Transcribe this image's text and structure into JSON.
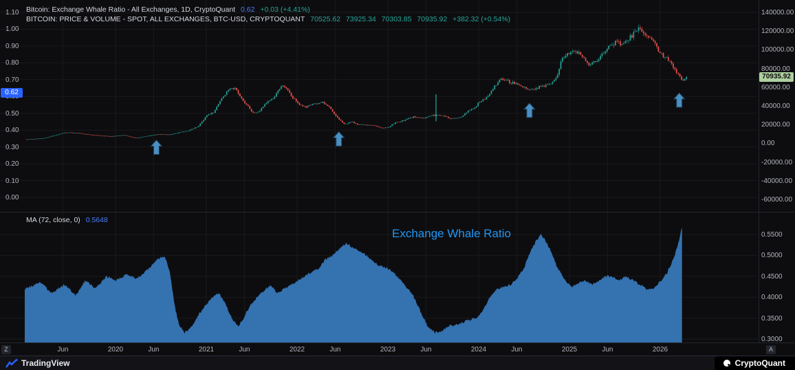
{
  "colors": {
    "background": "#0d0d0f",
    "grid": "rgba(255,255,255,0.055)",
    "axis_text": "#b2b5be",
    "accent_blue": "#2962ff",
    "green": "#26a69a",
    "candle_up": "#26a69a",
    "candle_down": "#ef5350",
    "area_fill": "#3572b0",
    "arrow": "#4a8fc2",
    "center_label_blue": "#2196f3",
    "left_chip_bg": "#2962ff",
    "right_chip_bg": "#aecfa0"
  },
  "header": {
    "line1": {
      "title": "Bitcoin: Exchange Whale Ratio - All Exchanges, 1D, CryptoQuant",
      "value": "0.62",
      "change": "+0.03 (+4.41%)"
    },
    "line2": {
      "title": "BITCOIN: PRICE & VOLUME - SPOT, ALL EXCHANGES, BTC-USD, CRYPTOQUANT",
      "open": "70525.62",
      "high": "73925.34",
      "low": "70303.85",
      "close": "70935.92",
      "change": "+382.32 (+0.54%)"
    }
  },
  "lower": {
    "ma_label": "MA (72, close, 0)",
    "ma_value": "0.5648",
    "center_label": "Exchange Whale Ratio"
  },
  "axes": {
    "left_ticks": [
      "1.10",
      "1.00",
      "0.90",
      "0.80",
      "0.70",
      "0.60",
      "0.50",
      "0.40",
      "0.30",
      "0.20",
      "0.10",
      "0.00"
    ],
    "right_ticks": [
      "140000.00",
      "120000.00",
      "100000.00",
      "80000.00",
      "60000.00",
      "40000.00",
      "20000.00",
      "0.00",
      "-20000.00",
      "-40000.00",
      "-60000.00"
    ],
    "lower_ticks": [
      "0.5500",
      "0.5000",
      "0.4500",
      "0.4000",
      "0.3500",
      "0.3000"
    ],
    "x_ticks": [
      {
        "label": "Jun",
        "year": 2019.42
      },
      {
        "label": "2020",
        "year": 2020
      },
      {
        "label": "Jun",
        "year": 2020.42
      },
      {
        "label": "2021",
        "year": 2021
      },
      {
        "label": "Jun",
        "year": 2021.42
      },
      {
        "label": "2022",
        "year": 2022
      },
      {
        "label": "Jun",
        "year": 2022.42
      },
      {
        "label": "2023",
        "year": 2023
      },
      {
        "label": "Jun",
        "year": 2023.42
      },
      {
        "label": "2024",
        "year": 2024
      },
      {
        "label": "Jun",
        "year": 2024.42
      },
      {
        "label": "2025",
        "year": 2025
      },
      {
        "label": "Jun",
        "year": 2025.42
      },
      {
        "label": "2026",
        "year": 2026
      }
    ],
    "left_chip": "0.62",
    "right_chip": "70935.92"
  },
  "toolbar": {
    "timezone_button": "Z",
    "auto_button": "A"
  },
  "footer": {
    "tradingview": "TradingView",
    "cryptoquant": "CryptoQuant"
  },
  "chart_data": {
    "type": "mixed",
    "charts": [
      {
        "type": "candlestick",
        "name": "BTC-USD spot price, all exchanges, 1D",
        "x_domain_years": [
          2019.0,
          2027.0
        ],
        "data_end_year": 2026.29,
        "right_axis": {
          "min": -60000,
          "max": 140000,
          "tick_step": 20000
        },
        "left_axis": {
          "min": 0.0,
          "max": 1.1,
          "tick_step": 0.1,
          "last_value": 0.62
        },
        "last_price": 70935.92,
        "price_anchors": [
          [
            2019.0,
            3800
          ],
          [
            2019.2,
            5200
          ],
          [
            2019.45,
            11500
          ],
          [
            2019.55,
            11000
          ],
          [
            2019.63,
            10200
          ],
          [
            2019.8,
            8300
          ],
          [
            2019.95,
            7300
          ],
          [
            2020.1,
            8800
          ],
          [
            2020.22,
            5400
          ],
          [
            2020.3,
            6800
          ],
          [
            2020.45,
            9400
          ],
          [
            2020.6,
            9300
          ],
          [
            2020.7,
            11500
          ],
          [
            2020.8,
            13000
          ],
          [
            2020.92,
            19000
          ],
          [
            2021.0,
            29500
          ],
          [
            2021.08,
            33000
          ],
          [
            2021.16,
            47000
          ],
          [
            2021.25,
            57000
          ],
          [
            2021.32,
            59000
          ],
          [
            2021.4,
            47000
          ],
          [
            2021.5,
            34000
          ],
          [
            2021.56,
            32000
          ],
          [
            2021.65,
            42000
          ],
          [
            2021.73,
            48000
          ],
          [
            2021.85,
            63000
          ],
          [
            2021.95,
            49000
          ],
          [
            2022.03,
            41000
          ],
          [
            2022.1,
            39000
          ],
          [
            2022.2,
            42000
          ],
          [
            2022.28,
            44000
          ],
          [
            2022.35,
            39000
          ],
          [
            2022.45,
            27000
          ],
          [
            2022.52,
            20500
          ],
          [
            2022.6,
            23000
          ],
          [
            2022.68,
            20000
          ],
          [
            2022.78,
            19500
          ],
          [
            2022.85,
            19200
          ],
          [
            2022.93,
            16200
          ],
          [
            2023.0,
            16800
          ],
          [
            2023.08,
            22000
          ],
          [
            2023.16,
            24000
          ],
          [
            2023.28,
            28500
          ],
          [
            2023.4,
            27000
          ],
          [
            2023.5,
            30000
          ],
          [
            2023.62,
            29500
          ],
          [
            2023.7,
            26000
          ],
          [
            2023.8,
            27500
          ],
          [
            2023.88,
            34500
          ],
          [
            2023.95,
            38000
          ],
          [
            2024.0,
            43000
          ],
          [
            2024.08,
            48000
          ],
          [
            2024.18,
            62000
          ],
          [
            2024.25,
            69000
          ],
          [
            2024.33,
            66000
          ],
          [
            2024.42,
            64000
          ],
          [
            2024.5,
            61000
          ],
          [
            2024.58,
            57000
          ],
          [
            2024.66,
            60000
          ],
          [
            2024.75,
            62000
          ],
          [
            2024.85,
            69000
          ],
          [
            2024.92,
            91000
          ],
          [
            2024.98,
            96000
          ],
          [
            2025.05,
            99000
          ],
          [
            2025.12,
            95000
          ],
          [
            2025.22,
            84000
          ],
          [
            2025.3,
            88000
          ],
          [
            2025.38,
            97000
          ],
          [
            2025.45,
            104000
          ],
          [
            2025.52,
            109000
          ],
          [
            2025.58,
            106000
          ],
          [
            2025.65,
            112000
          ],
          [
            2025.72,
            118000
          ],
          [
            2025.78,
            122500
          ],
          [
            2025.83,
            117000
          ],
          [
            2025.88,
            112000
          ],
          [
            2025.93,
            107000
          ],
          [
            2026.0,
            96000
          ],
          [
            2026.07,
            91000
          ],
          [
            2026.14,
            83000
          ],
          [
            2026.2,
            73000
          ],
          [
            2026.25,
            67000
          ],
          [
            2026.29,
            70936
          ]
        ]
      },
      {
        "type": "area",
        "name": "Exchange Whale Ratio MA(72)",
        "right_axis": {
          "min": 0.3,
          "max": 0.555,
          "tick_step": 0.05
        },
        "last_value": 0.5648,
        "anchors": [
          [
            2019.0,
            0.42
          ],
          [
            2019.18,
            0.435
          ],
          [
            2019.29,
            0.41
          ],
          [
            2019.44,
            0.43
          ],
          [
            2019.56,
            0.405
          ],
          [
            2019.67,
            0.44
          ],
          [
            2019.78,
            0.42
          ],
          [
            2019.9,
            0.45
          ],
          [
            2020.01,
            0.44
          ],
          [
            2020.12,
            0.455
          ],
          [
            2020.24,
            0.445
          ],
          [
            2020.35,
            0.465
          ],
          [
            2020.46,
            0.49
          ],
          [
            2020.54,
            0.5
          ],
          [
            2020.6,
            0.46
          ],
          [
            2020.65,
            0.38
          ],
          [
            2020.7,
            0.335
          ],
          [
            2020.76,
            0.315
          ],
          [
            2020.84,
            0.33
          ],
          [
            2020.92,
            0.36
          ],
          [
            2020.99,
            0.38
          ],
          [
            2021.07,
            0.4
          ],
          [
            2021.14,
            0.41
          ],
          [
            2021.22,
            0.38
          ],
          [
            2021.29,
            0.345
          ],
          [
            2021.35,
            0.33
          ],
          [
            2021.41,
            0.35
          ],
          [
            2021.48,
            0.38
          ],
          [
            2021.56,
            0.4
          ],
          [
            2021.63,
            0.415
          ],
          [
            2021.71,
            0.43
          ],
          [
            2021.78,
            0.41
          ],
          [
            2021.86,
            0.42
          ],
          [
            2021.93,
            0.43
          ],
          [
            2022.01,
            0.44
          ],
          [
            2022.08,
            0.45
          ],
          [
            2022.16,
            0.46
          ],
          [
            2022.24,
            0.47
          ],
          [
            2022.31,
            0.49
          ],
          [
            2022.39,
            0.5
          ],
          [
            2022.46,
            0.515
          ],
          [
            2022.54,
            0.53
          ],
          [
            2022.61,
            0.52
          ],
          [
            2022.69,
            0.51
          ],
          [
            2022.76,
            0.5
          ],
          [
            2022.84,
            0.485
          ],
          [
            2022.91,
            0.475
          ],
          [
            2022.99,
            0.47
          ],
          [
            2023.06,
            0.46
          ],
          [
            2023.14,
            0.44
          ],
          [
            2023.22,
            0.42
          ],
          [
            2023.29,
            0.4
          ],
          [
            2023.37,
            0.36
          ],
          [
            2023.44,
            0.33
          ],
          [
            2023.52,
            0.315
          ],
          [
            2023.59,
            0.32
          ],
          [
            2023.67,
            0.33
          ],
          [
            2023.82,
            0.34
          ],
          [
            2023.97,
            0.35
          ],
          [
            2024.05,
            0.37
          ],
          [
            2024.12,
            0.4
          ],
          [
            2024.2,
            0.42
          ],
          [
            2024.35,
            0.43
          ],
          [
            2024.42,
            0.445
          ],
          [
            2024.5,
            0.47
          ],
          [
            2024.57,
            0.51
          ],
          [
            2024.65,
            0.54
          ],
          [
            2024.69,
            0.55
          ],
          [
            2024.72,
            0.54
          ],
          [
            2024.8,
            0.51
          ],
          [
            2024.87,
            0.47
          ],
          [
            2024.95,
            0.44
          ],
          [
            2025.03,
            0.425
          ],
          [
            2025.1,
            0.435
          ],
          [
            2025.18,
            0.44
          ],
          [
            2025.25,
            0.43
          ],
          [
            2025.33,
            0.44
          ],
          [
            2025.4,
            0.45
          ],
          [
            2025.48,
            0.45
          ],
          [
            2025.55,
            0.44
          ],
          [
            2025.63,
            0.45
          ],
          [
            2025.7,
            0.44
          ],
          [
            2025.78,
            0.43
          ],
          [
            2025.86,
            0.42
          ],
          [
            2025.93,
            0.42
          ],
          [
            2026.01,
            0.44
          ],
          [
            2026.08,
            0.46
          ],
          [
            2026.16,
            0.5
          ],
          [
            2026.2,
            0.53
          ],
          [
            2026.24,
            0.568
          ]
        ]
      }
    ],
    "annotations": {
      "up_arrows": [
        {
          "year": 2020.45,
          "price": 3500
        },
        {
          "year": 2022.46,
          "price": 12500
        },
        {
          "year": 2024.56,
          "price": 43000
        },
        {
          "year": 2026.21,
          "price": 54000
        }
      ],
      "green_spike": {
        "year": 2023.53,
        "price_from": 23500,
        "price_to": 52500
      }
    }
  }
}
